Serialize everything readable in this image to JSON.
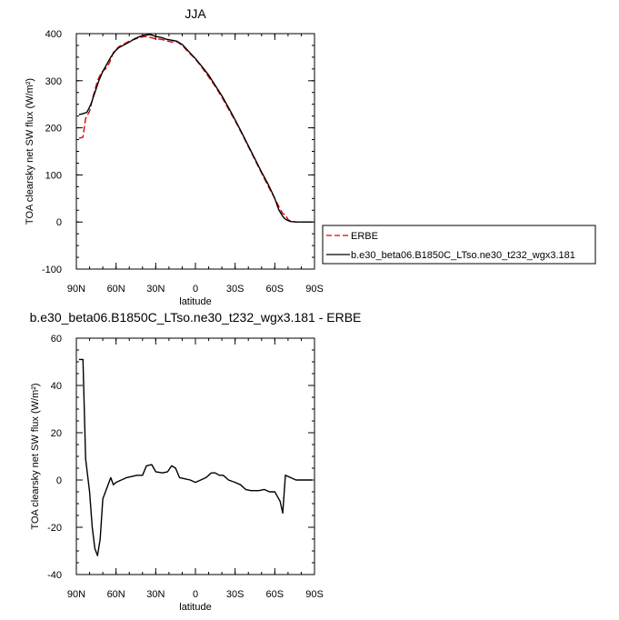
{
  "chart_data": [
    {
      "type": "line",
      "title": "JJA",
      "xlabel": "latitude",
      "ylabel": "TOA clearsky net SW flux (W/m²)",
      "x_tick_labels": [
        "90N",
        "60N",
        "30N",
        "0",
        "30S",
        "60S",
        "90S"
      ],
      "x_tick_values": [
        90,
        60,
        30,
        0,
        -30,
        -60,
        -90
      ],
      "xlim": [
        90,
        -90
      ],
      "ylim": [
        -100,
        400
      ],
      "y_ticks": [
        -100,
        0,
        100,
        200,
        300,
        400
      ],
      "grid": false,
      "legend_position": "right",
      "series": [
        {
          "name": "ERBE",
          "color": "#e00000",
          "dash": "dashed",
          "points": [
            [
              88,
              178
            ],
            [
              85,
              180
            ],
            [
              83,
              220
            ],
            [
              80,
              235
            ],
            [
              77,
              270
            ],
            [
              74,
              300
            ],
            [
              71,
              318
            ],
            [
              68,
              325
            ],
            [
              65,
              338
            ],
            [
              62,
              360
            ],
            [
              58,
              372
            ],
            [
              54,
              378
            ],
            [
              50,
              384
            ],
            [
              46,
              388
            ],
            [
              42,
              392
            ],
            [
              38,
              394
            ],
            [
              34,
              392
            ],
            [
              30,
              389
            ],
            [
              26,
              388
            ],
            [
              22,
              385
            ],
            [
              18,
              382
            ],
            [
              14,
              383
            ],
            [
              10,
              375
            ],
            [
              5,
              360
            ],
            [
              0,
              346
            ],
            [
              -5,
              328
            ],
            [
              -10,
              308
            ],
            [
              -15,
              288
            ],
            [
              -20,
              265
            ],
            [
              -25,
              240
            ],
            [
              -30,
              215
            ],
            [
              -35,
              188
            ],
            [
              -40,
              160
            ],
            [
              -45,
              132
            ],
            [
              -50,
              104
            ],
            [
              -55,
              76
            ],
            [
              -60,
              50
            ],
            [
              -63,
              33
            ],
            [
              -66,
              18
            ],
            [
              -68,
              15
            ],
            [
              -70,
              5
            ],
            [
              -72,
              2
            ],
            [
              -76,
              0
            ],
            [
              -82,
              0
            ],
            [
              -88,
              0
            ]
          ]
        },
        {
          "name": "b.e30_beta06.B1850C_LTso.ne30_t232_wgx3.181",
          "color": "#000000",
          "dash": "solid",
          "points": [
            [
              88,
              228
            ],
            [
              85,
              230
            ],
            [
              82,
              233
            ],
            [
              79,
              250
            ],
            [
              76,
              275
            ],
            [
              73,
              300
            ],
            [
              70,
              320
            ],
            [
              67,
              335
            ],
            [
              64,
              350
            ],
            [
              61,
              362
            ],
            [
              58,
              370
            ],
            [
              54,
              376
            ],
            [
              50,
              382
            ],
            [
              46,
              389
            ],
            [
              42,
              394
            ],
            [
              38,
              397
            ],
            [
              34,
              398
            ],
            [
              30,
              394
            ],
            [
              26,
              392
            ],
            [
              22,
              388
            ],
            [
              18,
              386
            ],
            [
              14,
              384
            ],
            [
              10,
              377
            ],
            [
              5,
              362
            ],
            [
              0,
              347
            ],
            [
              -5,
              330
            ],
            [
              -10,
              312
            ],
            [
              -15,
              290
            ],
            [
              -20,
              268
            ],
            [
              -25,
              243
            ],
            [
              -30,
              217
            ],
            [
              -35,
              190
            ],
            [
              -40,
              162
            ],
            [
              -45,
              134
            ],
            [
              -50,
              106
            ],
            [
              -55,
              80
            ],
            [
              -60,
              50
            ],
            [
              -63,
              26
            ],
            [
              -66,
              12
            ],
            [
              -68,
              6
            ],
            [
              -70,
              3
            ],
            [
              -72,
              1
            ],
            [
              -76,
              0
            ],
            [
              -82,
              0
            ],
            [
              -88,
              0
            ]
          ]
        }
      ]
    },
    {
      "type": "line",
      "title": "b.e30_beta06.B1850C_LTso.ne30_t232_wgx3.181 - ERBE",
      "xlabel": "latitude",
      "ylabel": "TOA clearsky net SW flux (W/m²)",
      "x_tick_labels": [
        "90N",
        "60N",
        "30N",
        "0",
        "30S",
        "60S",
        "90S"
      ],
      "x_tick_values": [
        90,
        60,
        30,
        0,
        -30,
        -60,
        -90
      ],
      "xlim": [
        90,
        -90
      ],
      "ylim": [
        -40,
        60
      ],
      "y_ticks": [
        -40,
        -20,
        0,
        20,
        40,
        60
      ],
      "grid": false,
      "series": [
        {
          "color": "#000000",
          "dash": "solid",
          "points": [
            [
              88,
              51
            ],
            [
              85,
              51
            ],
            [
              83,
              9
            ],
            [
              80,
              -5
            ],
            [
              78,
              -20
            ],
            [
              76,
              -29
            ],
            [
              74,
              -32
            ],
            [
              72,
              -25
            ],
            [
              70,
              -8
            ],
            [
              68,
              -5
            ],
            [
              66,
              -2
            ],
            [
              64,
              1
            ],
            [
              62,
              -2
            ],
            [
              60,
              -1
            ],
            [
              56,
              0
            ],
            [
              52,
              1
            ],
            [
              48,
              1.5
            ],
            [
              44,
              2
            ],
            [
              40,
              2
            ],
            [
              37,
              6
            ],
            [
              33,
              6.5
            ],
            [
              30,
              3.5
            ],
            [
              25,
              3
            ],
            [
              21,
              3.5
            ],
            [
              18,
              6
            ],
            [
              15,
              5
            ],
            [
              12,
              1
            ],
            [
              8,
              0.5
            ],
            [
              4,
              0
            ],
            [
              0,
              -1
            ],
            [
              -4,
              0
            ],
            [
              -8,
              1
            ],
            [
              -12,
              3
            ],
            [
              -15,
              3
            ],
            [
              -18,
              2
            ],
            [
              -21,
              2
            ],
            [
              -25,
              0
            ],
            [
              -30,
              -1
            ],
            [
              -34,
              -2
            ],
            [
              -38,
              -4
            ],
            [
              -42,
              -4.5
            ],
            [
              -45,
              -4.5
            ],
            [
              -48,
              -4.5
            ],
            [
              -52,
              -4
            ],
            [
              -56,
              -5
            ],
            [
              -60,
              -5
            ],
            [
              -62,
              -7
            ],
            [
              -64,
              -9
            ],
            [
              -66,
              -14
            ],
            [
              -68,
              2
            ],
            [
              -72,
              1
            ],
            [
              -76,
              0
            ],
            [
              -82,
              0
            ],
            [
              -88,
              0
            ]
          ]
        }
      ]
    }
  ]
}
